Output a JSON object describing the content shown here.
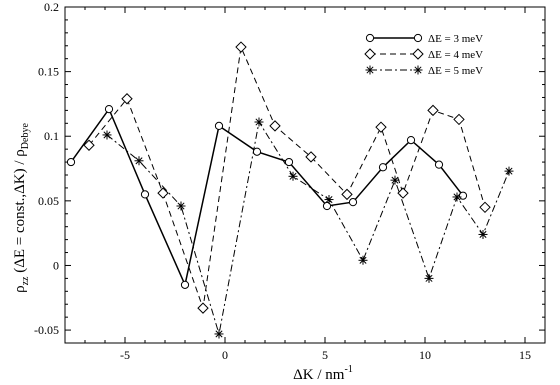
{
  "chart_data": {
    "type": "line",
    "xlabel": "ΔK / nm",
    "xlabel_superscript": "-1",
    "ylabel_main": "ρ",
    "ylabel_sub": "zz",
    "ylabel_mid": " (ΔE = const.,ΔK) / ρ",
    "ylabel_sub2": "Debye",
    "xlim": [
      -8,
      16
    ],
    "ylim": [
      -0.06,
      0.2
    ],
    "xticks": [
      -5,
      0,
      5,
      10,
      15
    ],
    "yticks": [
      -0.05,
      0,
      0.05,
      0.1,
      0.15,
      0.2
    ],
    "ytick_labels": [
      "-0.05",
      "0",
      "0.05",
      "0.1",
      "0.15",
      "0.2"
    ],
    "xtick_labels": [
      "-5",
      "0",
      "5",
      "10",
      "15"
    ],
    "legend_position": "top-right",
    "grid": false,
    "series": [
      {
        "name": "ΔE = 3 meV",
        "marker": "circle",
        "dash": "solid",
        "x": [
          -7.7,
          -5.8,
          -4.0,
          -2.0,
          -0.3,
          1.6,
          3.2,
          5.1,
          6.4,
          7.9,
          9.3,
          10.7,
          11.9
        ],
        "y": [
          0.08,
          0.121,
          0.055,
          -0.015,
          0.108,
          0.088,
          0.08,
          0.046,
          0.049,
          0.076,
          0.097,
          0.078,
          0.054
        ]
      },
      {
        "name": "ΔE = 4 meV",
        "marker": "diamond",
        "dash": "dashed",
        "x": [
          -6.8,
          -4.9,
          -3.1,
          -1.1,
          0.8,
          2.5,
          4.3,
          6.1,
          7.8,
          8.9,
          10.4,
          11.7,
          13.0
        ],
        "y": [
          0.093,
          0.129,
          0.056,
          -0.033,
          0.169,
          0.108,
          0.084,
          0.055,
          0.107,
          0.056,
          0.12,
          0.113,
          0.045
        ]
      },
      {
        "name": "ΔE = 5 meV",
        "marker": "star",
        "dash": "dashdot",
        "x": [
          -5.9,
          -4.3,
          -2.2,
          -0.3,
          1.7,
          3.4,
          5.2,
          6.9,
          8.5,
          10.2,
          11.6,
          12.9,
          14.2
        ],
        "y": [
          0.101,
          0.081,
          0.046,
          -0.053,
          0.111,
          0.069,
          0.051,
          0.004,
          0.066,
          -0.01,
          0.053,
          0.024,
          0.073
        ]
      }
    ]
  }
}
